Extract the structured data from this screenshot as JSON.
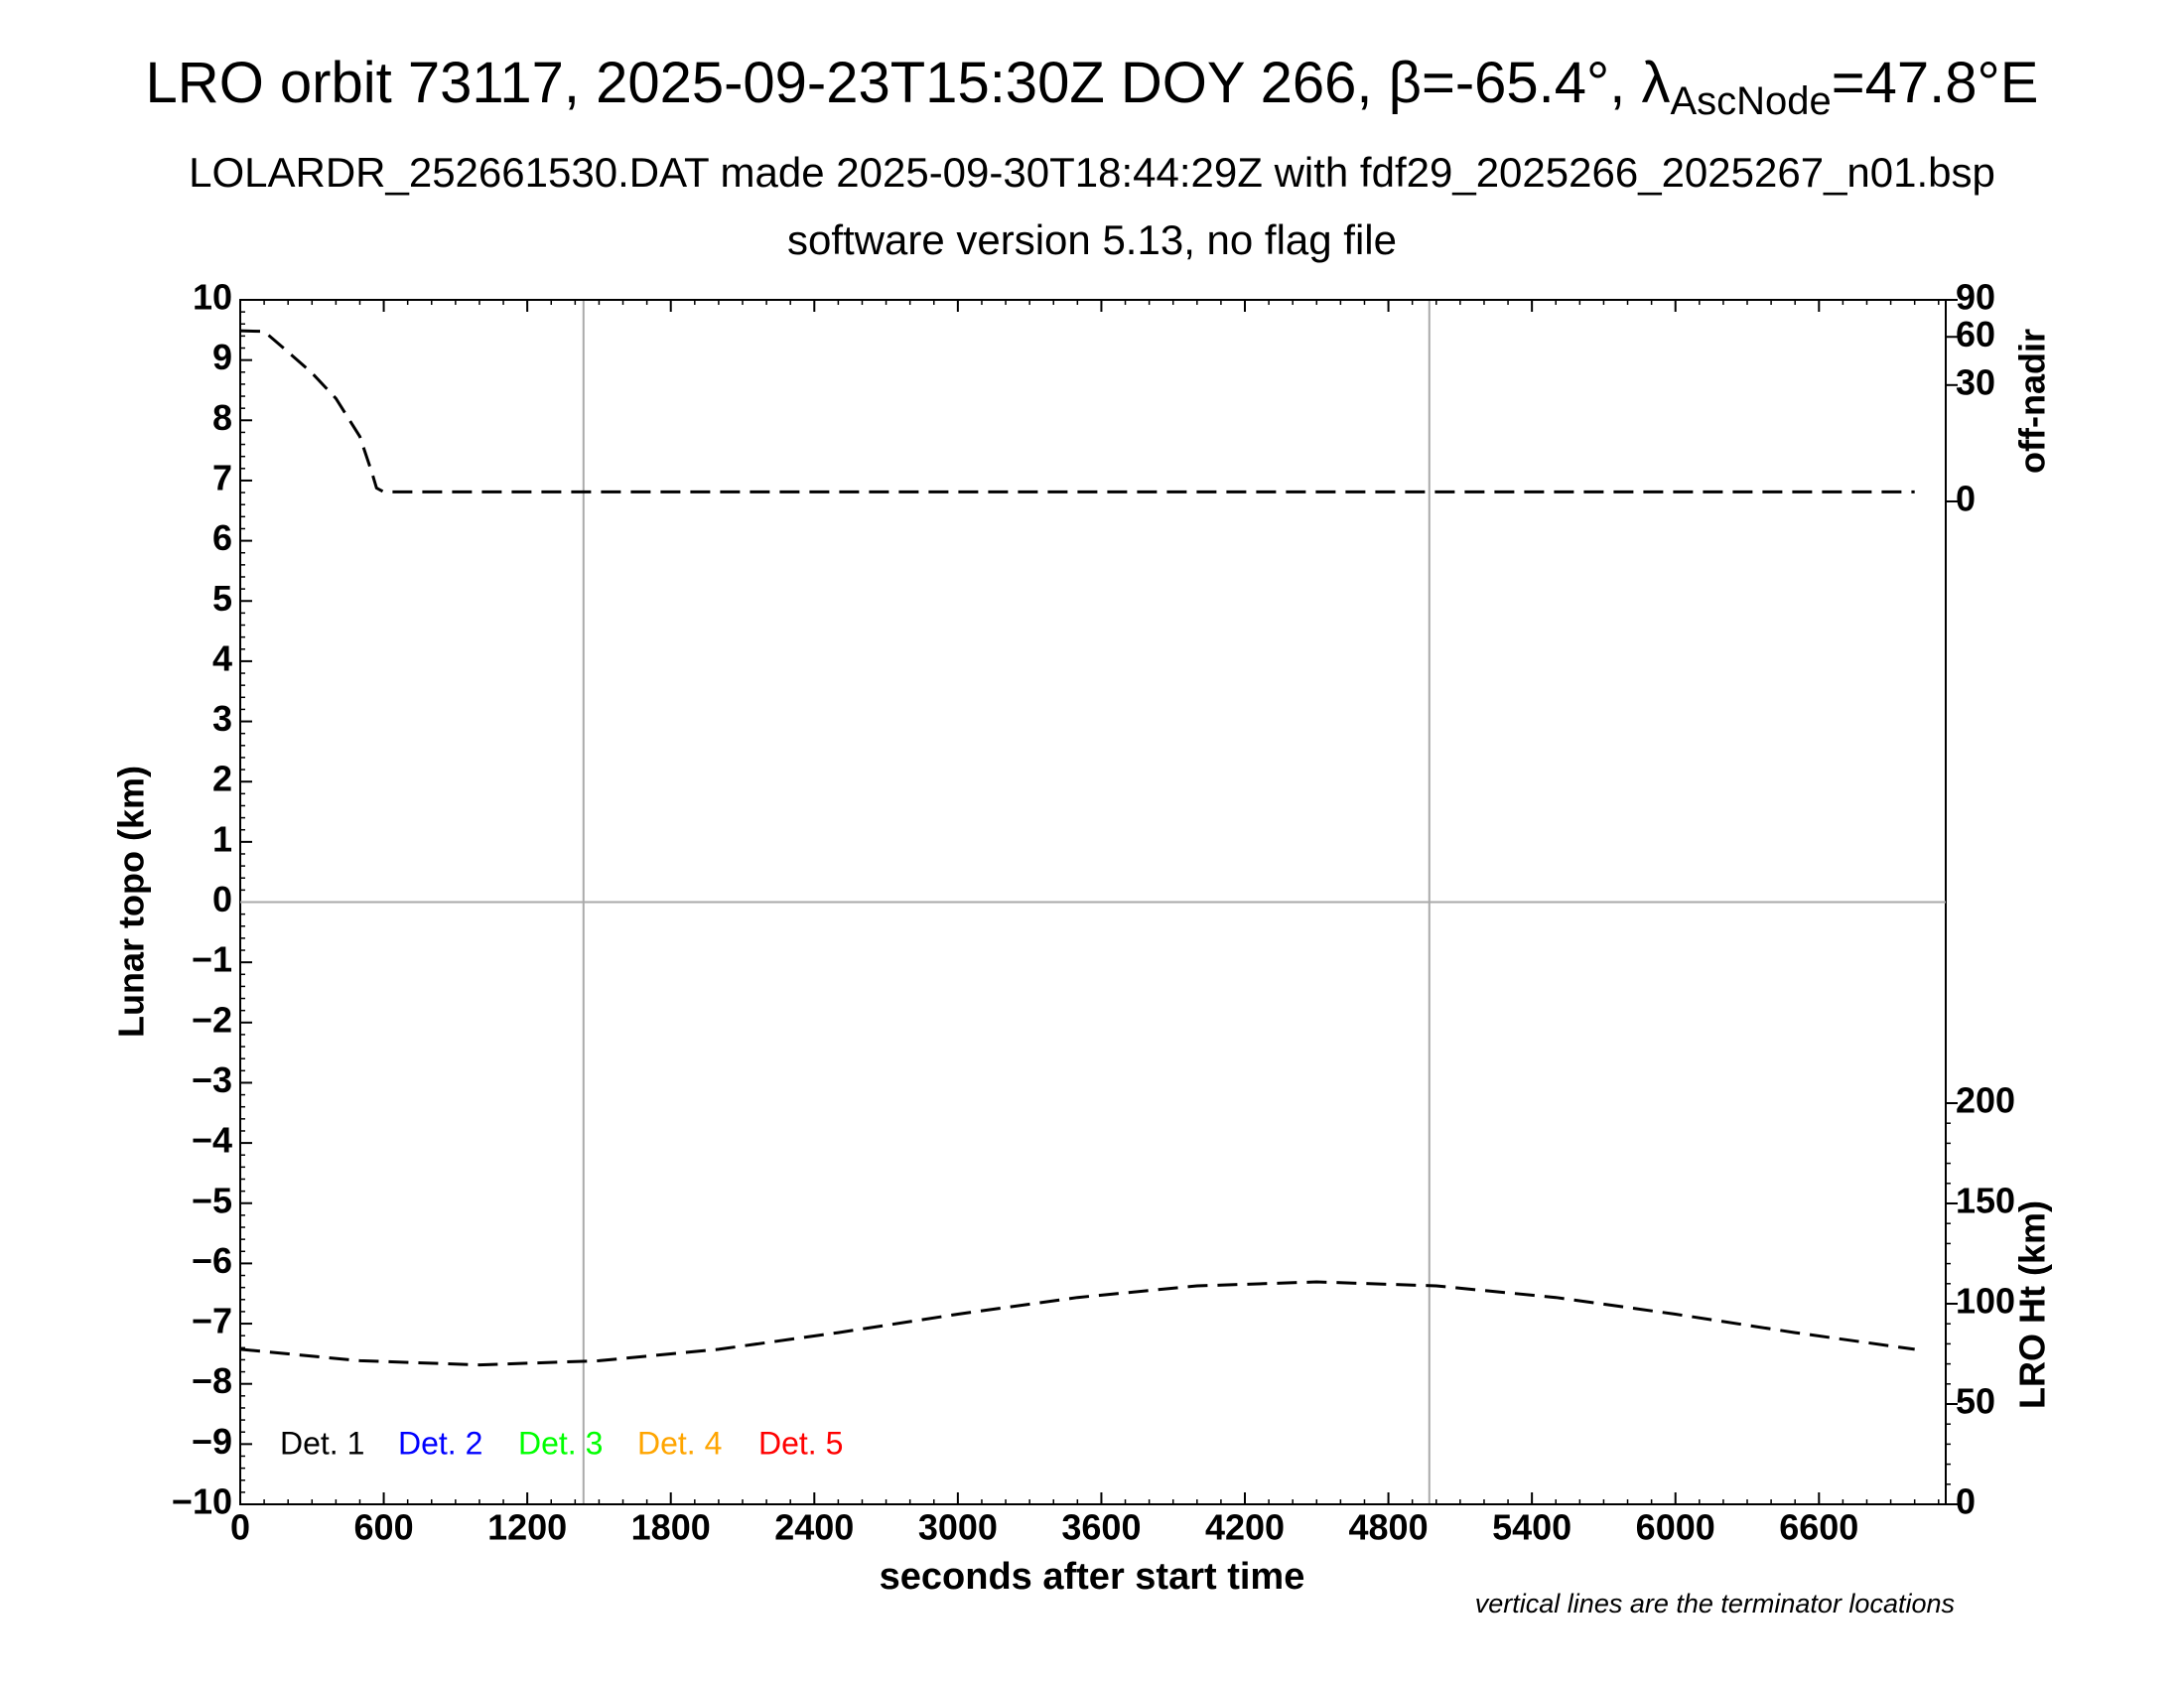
{
  "chart_data": {
    "type": "line",
    "title": "LRO orbit 73117, 2025-09-23T15:30Z DOY 266, β=-65.4°, λ",
    "title_subscript": "AscNode",
    "title_end": "=47.8°E",
    "subtitle": "LOLARDR_252661530.DAT made 2025-09-30T18:44:29Z with fdf29_2025266_2025267_n01.bsp",
    "subtitle2": "software version 5.13, no flag file",
    "xlabel": "seconds after start time",
    "ylabel": "Lunar topo (km)",
    "y2label": "off-nadir",
    "y3label": "LRO Ht (km)",
    "annotation": "vertical lines are the terminator locations",
    "xlim": [
      0,
      7130
    ],
    "xticks": [
      0,
      600,
      1200,
      1800,
      2400,
      3000,
      3600,
      4200,
      4800,
      5400,
      6000,
      6600
    ],
    "ylim": [
      -10,
      10
    ],
    "yticks": [
      {
        "value": -10,
        "label": "−10"
      },
      {
        "value": -9,
        "label": "−9"
      },
      {
        "value": -8,
        "label": "−8"
      },
      {
        "value": -7,
        "label": "−7"
      },
      {
        "value": -6,
        "label": "−6"
      },
      {
        "value": -5,
        "label": "−5"
      },
      {
        "value": -4,
        "label": "−4"
      },
      {
        "value": -3,
        "label": "−3"
      },
      {
        "value": -2,
        "label": "−2"
      },
      {
        "value": -1,
        "label": "−1"
      },
      0,
      1,
      2,
      3,
      4,
      5,
      6,
      7,
      8,
      9,
      10
    ],
    "y2lim": [
      0,
      90
    ],
    "y2scale": "sqrt",
    "y2ticks": [
      0,
      30,
      60,
      90
    ],
    "y3lim": [
      0,
      200
    ],
    "y3ticks": [
      0,
      50,
      100,
      150,
      200
    ],
    "terminators": [
      1435,
      4971
    ],
    "legend": [
      {
        "name": "Det. 1",
        "color": "#000000"
      },
      {
        "name": "Det. 2",
        "color": "#0000ff"
      },
      {
        "name": "Det. 3",
        "color": "#00ff00"
      },
      {
        "name": "Det. 4",
        "color": "#ffa500"
      },
      {
        "name": "Det. 5",
        "color": "#ff0000"
      }
    ],
    "series": [
      {
        "name": "off-nadir",
        "axis": "y2",
        "color": "#000000",
        "x": [
          0,
          100,
          200,
          300,
          400,
          500,
          550,
          570,
          600,
          1200,
          2400,
          3600,
          4800,
          6000,
          7000
        ],
        "values": [
          64.5,
          64,
          49.5,
          36.5,
          23.5,
          9.3,
          1.9,
          0.4,
          0.2,
          0.2,
          0.2,
          0.2,
          0.2,
          0.2,
          0.2
        ]
      },
      {
        "name": "LRO Ht",
        "axis": "y3",
        "color": "#000000",
        "x": [
          0,
          500,
          1000,
          1500,
          2000,
          2500,
          3000,
          3500,
          4000,
          4500,
          5000,
          5500,
          6000,
          6500,
          7000
        ],
        "values": [
          77.3,
          71.6,
          69.5,
          71.6,
          77.3,
          85.6,
          94.8,
          103.1,
          108.9,
          110.9,
          108.9,
          103.1,
          94.8,
          85.6,
          77.3
        ]
      }
    ]
  }
}
